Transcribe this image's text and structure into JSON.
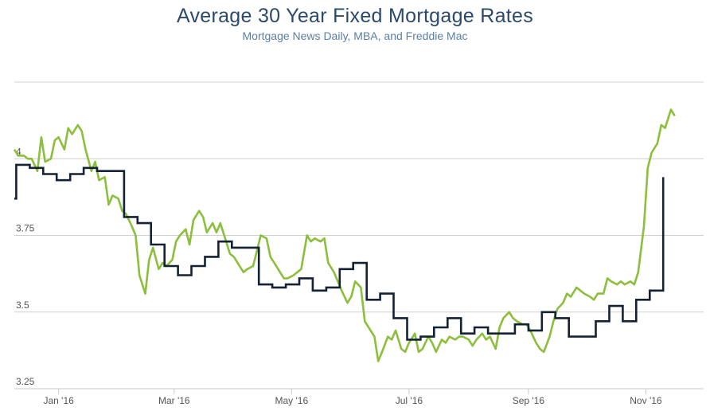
{
  "chart_data": {
    "type": "line",
    "title": "Average 30 Year Fixed Mortgage Rates",
    "subtitle": "Mortgage News Daily, MBA, and Freddie Mac",
    "xlabel": "",
    "ylabel": "",
    "x_range": [
      "2015-12-09",
      "2016-12-01"
    ],
    "ylim": [
      3.25,
      4.25
    ],
    "y_ticks": [
      3.25,
      3.5,
      3.75,
      4
    ],
    "y_tick_labels": [
      "3.25",
      "3.5",
      "3.75",
      "4"
    ],
    "x_ticks": [
      {
        "date": "2016-01-01",
        "label": "Jan '16"
      },
      {
        "date": "2016-03-01",
        "label": "Mar '16"
      },
      {
        "date": "2016-05-01",
        "label": "May '16"
      },
      {
        "date": "2016-07-01",
        "label": "Jul '16"
      },
      {
        "date": "2016-09-01",
        "label": "Sep '16"
      },
      {
        "date": "2016-11-01",
        "label": "Nov '16"
      }
    ],
    "grid": "horizontal",
    "legend": "none",
    "series": [
      {
        "color": "#8bbf3c",
        "step": false,
        "points": [
          [
            "2015-12-09",
            4.03
          ],
          [
            "2015-12-11",
            4.01
          ],
          [
            "2015-12-14",
            4.01
          ],
          [
            "2015-12-16",
            4.0
          ],
          [
            "2015-12-18",
            4.0
          ],
          [
            "2015-12-21",
            3.96
          ],
          [
            "2015-12-23",
            4.07
          ],
          [
            "2015-12-25",
            3.99
          ],
          [
            "2015-12-28",
            4.0
          ],
          [
            "2015-12-30",
            4.06
          ],
          [
            "2016-01-01",
            4.07
          ],
          [
            "2016-01-04",
            4.03
          ],
          [
            "2016-01-06",
            4.1
          ],
          [
            "2016-01-08",
            4.08
          ],
          [
            "2016-01-11",
            4.11
          ],
          [
            "2016-01-13",
            4.09
          ],
          [
            "2016-01-15",
            4.03
          ],
          [
            "2016-01-18",
            3.96
          ],
          [
            "2016-01-20",
            3.99
          ],
          [
            "2016-01-22",
            3.93
          ],
          [
            "2016-01-25",
            3.94
          ],
          [
            "2016-01-27",
            3.85
          ],
          [
            "2016-01-29",
            3.88
          ],
          [
            "2016-02-01",
            3.87
          ],
          [
            "2016-02-03",
            3.83
          ],
          [
            "2016-02-05",
            3.82
          ],
          [
            "2016-02-08",
            3.78
          ],
          [
            "2016-02-10",
            3.75
          ],
          [
            "2016-02-12",
            3.62
          ],
          [
            "2016-02-15",
            3.56
          ],
          [
            "2016-02-17",
            3.67
          ],
          [
            "2016-02-19",
            3.71
          ],
          [
            "2016-02-22",
            3.64
          ],
          [
            "2016-02-24",
            3.66
          ],
          [
            "2016-02-26",
            3.65
          ],
          [
            "2016-02-29",
            3.67
          ],
          [
            "2016-03-02",
            3.73
          ],
          [
            "2016-03-04",
            3.75
          ],
          [
            "2016-03-07",
            3.77
          ],
          [
            "2016-03-09",
            3.72
          ],
          [
            "2016-03-11",
            3.8
          ],
          [
            "2016-03-14",
            3.83
          ],
          [
            "2016-03-16",
            3.81
          ],
          [
            "2016-03-18",
            3.76
          ],
          [
            "2016-03-21",
            3.79
          ],
          [
            "2016-03-23",
            3.76
          ],
          [
            "2016-03-25",
            3.79
          ],
          [
            "2016-03-28",
            3.73
          ],
          [
            "2016-03-30",
            3.69
          ],
          [
            "2016-04-01",
            3.68
          ],
          [
            "2016-04-04",
            3.65
          ],
          [
            "2016-04-06",
            3.63
          ],
          [
            "2016-04-08",
            3.64
          ],
          [
            "2016-04-11",
            3.65
          ],
          [
            "2016-04-13",
            3.7
          ],
          [
            "2016-04-15",
            3.75
          ],
          [
            "2016-04-18",
            3.74
          ],
          [
            "2016-04-20",
            3.68
          ],
          [
            "2016-04-22",
            3.66
          ],
          [
            "2016-04-25",
            3.63
          ],
          [
            "2016-04-27",
            3.61
          ],
          [
            "2016-04-29",
            3.61
          ],
          [
            "2016-05-02",
            3.62
          ],
          [
            "2016-05-04",
            3.63
          ],
          [
            "2016-05-06",
            3.64
          ],
          [
            "2016-05-09",
            3.75
          ],
          [
            "2016-05-11",
            3.73
          ],
          [
            "2016-05-13",
            3.74
          ],
          [
            "2016-05-16",
            3.73
          ],
          [
            "2016-05-18",
            3.74
          ],
          [
            "2016-05-20",
            3.66
          ],
          [
            "2016-05-23",
            3.63
          ],
          [
            "2016-05-25",
            3.6
          ],
          [
            "2016-05-27",
            3.57
          ],
          [
            "2016-05-30",
            3.53
          ],
          [
            "2016-06-01",
            3.55
          ],
          [
            "2016-06-03",
            3.6
          ],
          [
            "2016-06-06",
            3.58
          ],
          [
            "2016-06-08",
            3.47
          ],
          [
            "2016-06-10",
            3.45
          ],
          [
            "2016-06-13",
            3.42
          ],
          [
            "2016-06-15",
            3.34
          ],
          [
            "2016-06-17",
            3.37
          ],
          [
            "2016-06-20",
            3.42
          ],
          [
            "2016-06-22",
            3.41
          ],
          [
            "2016-06-24",
            3.44
          ],
          [
            "2016-06-27",
            3.38
          ],
          [
            "2016-06-29",
            3.37
          ],
          [
            "2016-07-01",
            3.4
          ],
          [
            "2016-07-04",
            3.43
          ],
          [
            "2016-07-06",
            3.37
          ],
          [
            "2016-07-08",
            3.38
          ],
          [
            "2016-07-11",
            3.42
          ],
          [
            "2016-07-13",
            3.4
          ],
          [
            "2016-07-15",
            3.37
          ],
          [
            "2016-07-18",
            3.41
          ],
          [
            "2016-07-20",
            3.4
          ],
          [
            "2016-07-22",
            3.42
          ],
          [
            "2016-07-25",
            3.41
          ],
          [
            "2016-07-27",
            3.42
          ],
          [
            "2016-07-29",
            3.42
          ],
          [
            "2016-08-01",
            3.41
          ],
          [
            "2016-08-03",
            3.39
          ],
          [
            "2016-08-05",
            3.41
          ],
          [
            "2016-08-08",
            3.43
          ],
          [
            "2016-08-10",
            3.41
          ],
          [
            "2016-08-12",
            3.42
          ],
          [
            "2016-08-15",
            3.38
          ],
          [
            "2016-08-17",
            3.45
          ],
          [
            "2016-08-19",
            3.48
          ],
          [
            "2016-08-22",
            3.5
          ],
          [
            "2016-08-24",
            3.48
          ],
          [
            "2016-08-26",
            3.47
          ],
          [
            "2016-08-29",
            3.46
          ],
          [
            "2016-08-31",
            3.46
          ],
          [
            "2016-09-02",
            3.44
          ],
          [
            "2016-09-05",
            3.4
          ],
          [
            "2016-09-07",
            3.38
          ],
          [
            "2016-09-09",
            3.37
          ],
          [
            "2016-09-12",
            3.42
          ],
          [
            "2016-09-14",
            3.47
          ],
          [
            "2016-09-16",
            3.51
          ],
          [
            "2016-09-19",
            3.53
          ],
          [
            "2016-09-21",
            3.56
          ],
          [
            "2016-09-23",
            3.55
          ],
          [
            "2016-09-26",
            3.58
          ],
          [
            "2016-09-28",
            3.57
          ],
          [
            "2016-09-30",
            3.56
          ],
          [
            "2016-10-03",
            3.55
          ],
          [
            "2016-10-05",
            3.54
          ],
          [
            "2016-10-07",
            3.56
          ],
          [
            "2016-10-10",
            3.56
          ],
          [
            "2016-10-12",
            3.61
          ],
          [
            "2016-10-14",
            3.6
          ],
          [
            "2016-10-17",
            3.59
          ],
          [
            "2016-10-19",
            3.6
          ],
          [
            "2016-10-21",
            3.59
          ],
          [
            "2016-10-24",
            3.6
          ],
          [
            "2016-10-26",
            3.59
          ],
          [
            "2016-10-28",
            3.63
          ],
          [
            "2016-10-31",
            3.78
          ],
          [
            "2016-11-02",
            3.97
          ],
          [
            "2016-11-04",
            4.02
          ],
          [
            "2016-11-07",
            4.05
          ],
          [
            "2016-11-09",
            4.11
          ],
          [
            "2016-11-11",
            4.1
          ],
          [
            "2016-11-14",
            4.16
          ],
          [
            "2016-11-16",
            4.14
          ]
        ]
      },
      {
        "color": "#132235",
        "step": true,
        "points": [
          [
            "2015-12-09",
            3.87
          ],
          [
            "2015-12-10",
            3.98
          ],
          [
            "2015-12-17",
            3.97
          ],
          [
            "2015-12-24",
            3.95
          ],
          [
            "2015-12-31",
            3.93
          ],
          [
            "2016-01-07",
            3.95
          ],
          [
            "2016-01-14",
            3.97
          ],
          [
            "2016-01-21",
            3.96
          ],
          [
            "2016-01-28",
            3.96
          ],
          [
            "2016-02-04",
            3.81
          ],
          [
            "2016-02-11",
            3.79
          ],
          [
            "2016-02-18",
            3.72
          ],
          [
            "2016-02-25",
            3.65
          ],
          [
            "2016-03-03",
            3.62
          ],
          [
            "2016-03-10",
            3.65
          ],
          [
            "2016-03-17",
            3.68
          ],
          [
            "2016-03-24",
            3.73
          ],
          [
            "2016-03-31",
            3.71
          ],
          [
            "2016-04-07",
            3.71
          ],
          [
            "2016-04-14",
            3.59
          ],
          [
            "2016-04-21",
            3.58
          ],
          [
            "2016-04-28",
            3.59
          ],
          [
            "2016-05-05",
            3.61
          ],
          [
            "2016-05-12",
            3.57
          ],
          [
            "2016-05-19",
            3.58
          ],
          [
            "2016-05-26",
            3.64
          ],
          [
            "2016-06-02",
            3.66
          ],
          [
            "2016-06-09",
            3.54
          ],
          [
            "2016-06-16",
            3.56
          ],
          [
            "2016-06-23",
            3.48
          ],
          [
            "2016-06-30",
            3.41
          ],
          [
            "2016-07-07",
            3.42
          ],
          [
            "2016-07-14",
            3.45
          ],
          [
            "2016-07-21",
            3.48
          ],
          [
            "2016-07-28",
            3.43
          ],
          [
            "2016-08-04",
            3.45
          ],
          [
            "2016-08-11",
            3.43
          ],
          [
            "2016-08-18",
            3.43
          ],
          [
            "2016-08-25",
            3.46
          ],
          [
            "2016-09-01",
            3.44
          ],
          [
            "2016-09-08",
            3.5
          ],
          [
            "2016-09-15",
            3.48
          ],
          [
            "2016-09-22",
            3.42
          ],
          [
            "2016-09-29",
            3.42
          ],
          [
            "2016-10-06",
            3.47
          ],
          [
            "2016-10-13",
            3.52
          ],
          [
            "2016-10-20",
            3.47
          ],
          [
            "2016-10-27",
            3.54
          ],
          [
            "2016-11-03",
            3.57
          ],
          [
            "2016-11-10",
            3.94
          ]
        ]
      }
    ]
  }
}
